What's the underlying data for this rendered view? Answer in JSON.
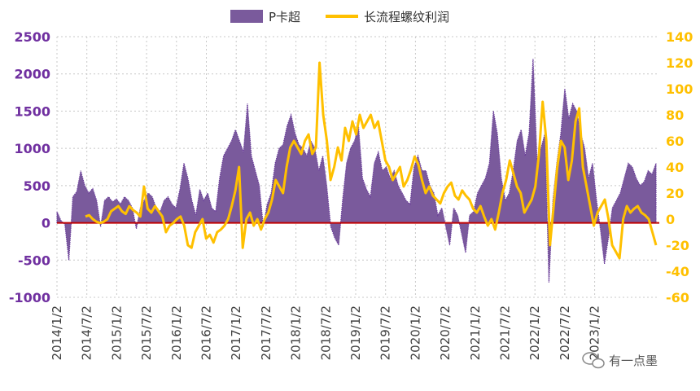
{
  "chart_data": {
    "type": "area+line",
    "title": "",
    "legend_position": "top",
    "series": [
      {
        "name": "P卡超",
        "kind": "area",
        "axis": "left",
        "color": "#7A5A9C",
        "values": [
          150,
          30,
          -20,
          -500,
          350,
          420,
          700,
          500,
          400,
          460,
          300,
          -50,
          300,
          350,
          280,
          320,
          250,
          350,
          300,
          200,
          -80,
          200,
          300,
          400,
          350,
          200,
          150,
          300,
          350,
          250,
          200,
          450,
          800,
          600,
          300,
          100,
          450,
          300,
          400,
          200,
          150,
          600,
          900,
          1000,
          1100,
          1250,
          1100,
          950,
          1600,
          900,
          700,
          500,
          -50,
          250,
          400,
          800,
          1000,
          1050,
          1300,
          1450,
          1200,
          1050,
          1000,
          900,
          1100,
          1000,
          700,
          900,
          500,
          -50,
          -200,
          -300,
          300,
          800,
          1000,
          1100,
          1300,
          600,
          450,
          350,
          800,
          950,
          700,
          750,
          600,
          700,
          500,
          400,
          300,
          250,
          750,
          900,
          700,
          700,
          500,
          400,
          100,
          200,
          -50,
          -300,
          200,
          100,
          -150,
          -400,
          100,
          150,
          400,
          500,
          600,
          800,
          1500,
          1200,
          600,
          300,
          400,
          700,
          1100,
          1250,
          900,
          1200,
          2200,
          850,
          1000,
          1200,
          -800,
          300,
          800,
          1200,
          1800,
          1400,
          1600,
          1500,
          1200,
          1000,
          600,
          800,
          300,
          -100,
          -550,
          -200,
          200,
          300,
          400,
          600,
          800,
          750,
          600,
          500,
          550,
          700,
          650,
          800
        ],
        "range_note": "values per half-month, 2014/1 to 2023/10 (approx.)"
      },
      {
        "name": "长流程螺纹利润",
        "kind": "line",
        "axis": "right",
        "color": "#FFC000",
        "values": [
          2,
          3,
          0,
          -2,
          -3,
          -2,
          0,
          6,
          8,
          10,
          6,
          4,
          10,
          7,
          5,
          2,
          25,
          8,
          5,
          10,
          6,
          2,
          -10,
          -5,
          -3,
          0,
          2,
          -5,
          -20,
          -22,
          -10,
          -5,
          0,
          -15,
          -12,
          -18,
          -10,
          -8,
          -5,
          0,
          10,
          22,
          40,
          -22,
          0,
          5,
          -5,
          0,
          -8,
          0,
          5,
          15,
          30,
          25,
          20,
          40,
          55,
          60,
          55,
          50,
          60,
          65,
          50,
          55,
          120,
          80,
          60,
          30,
          40,
          55,
          45,
          70,
          60,
          75,
          65,
          80,
          70,
          75,
          80,
          70,
          75,
          60,
          45,
          40,
          30,
          35,
          40,
          25,
          30,
          38,
          48,
          42,
          30,
          20,
          25,
          18,
          15,
          12,
          20,
          25,
          28,
          18,
          15,
          22,
          18,
          15,
          8,
          5,
          10,
          2,
          -5,
          0,
          -8,
          5,
          20,
          30,
          45,
          35,
          25,
          20,
          5,
          10,
          15,
          25,
          50,
          90,
          60,
          -20,
          10,
          40,
          60,
          55,
          30,
          45,
          75,
          85,
          40,
          25,
          10,
          -5,
          5,
          10,
          15,
          0,
          -20,
          -25,
          -30,
          0,
          10,
          5,
          8,
          10,
          5,
          3,
          0,
          -10,
          -20
        ]
      }
    ],
    "x_tick_labels": [
      "2014/1/2",
      "2014/7/2",
      "2015/1/2",
      "2015/7/2",
      "2016/1/2",
      "2016/7/2",
      "2017/1/2",
      "2017/7/2",
      "2018/1/2",
      "2018/7/2",
      "2019/1/2",
      "2019/7/2",
      "2020/1/2",
      "2020/7/2",
      "2021/1/2",
      "2021/7/2",
      "2022/1/2",
      "2022/7/2",
      "2023/1/2"
    ],
    "y_left": {
      "min": -1000,
      "max": 2500,
      "ticks": [
        2500,
        2000,
        1500,
        1000,
        500,
        0,
        -500,
        -1000
      ],
      "color": "#7030A0"
    },
    "y_right": {
      "min": -60,
      "max": 140,
      "ticks": [
        140,
        120,
        100,
        80,
        60,
        40,
        20,
        0,
        -20,
        -40,
        -60
      ],
      "color": "#FFC000"
    },
    "zero_line_color": "#C00000",
    "grid": true
  },
  "watermark": "有一点墨"
}
